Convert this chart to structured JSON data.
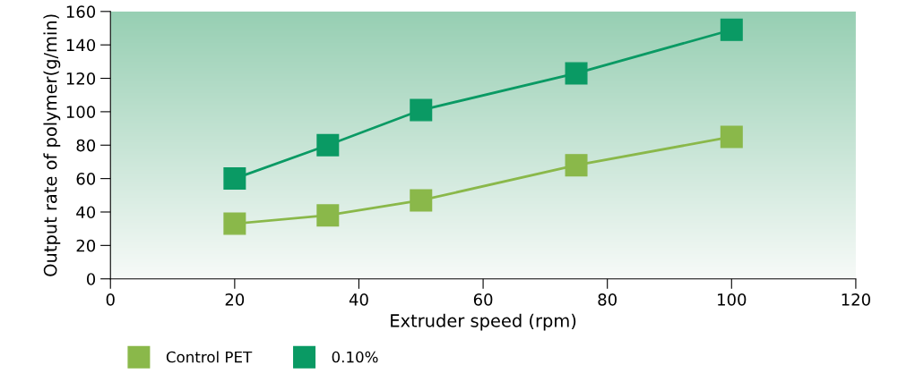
{
  "chart_data": {
    "type": "line",
    "xlabel": "Extruder speed (rpm)",
    "ylabel": "Output rate of polymer(g/min)",
    "x": [
      20,
      35,
      50,
      75,
      100
    ],
    "series": [
      {
        "name": "Control PET",
        "color": "#8ab84a",
        "values": [
          33,
          38,
          47,
          68,
          85
        ]
      },
      {
        "name": "0.10%",
        "color": "#0a9a64",
        "values": [
          60,
          80,
          101,
          123,
          149
        ]
      }
    ],
    "xlim": [
      0,
      120
    ],
    "xticks": [
      0,
      20,
      40,
      60,
      80,
      100,
      120
    ],
    "ylim": [
      0,
      160
    ],
    "yticks": [
      0,
      20,
      40,
      60,
      80,
      100,
      120,
      140,
      160
    ],
    "marker": "square",
    "line_style": "solid",
    "legend": "bottom left",
    "grid": false
  }
}
